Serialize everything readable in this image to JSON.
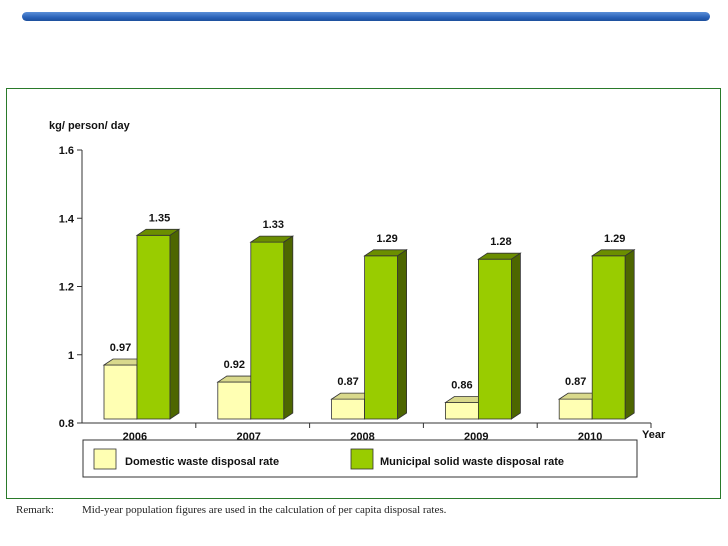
{
  "chart_data": {
    "type": "bar",
    "ylabel": "kg/ person/ day",
    "xlabel": "Year",
    "ylim": [
      0.8,
      1.6
    ],
    "yticks": [
      0.8,
      1,
      1.2,
      1.4,
      1.6
    ],
    "ytick_labels": [
      "0.8",
      "1",
      "1.2",
      "1.4",
      "1.6"
    ],
    "categories": [
      "2006",
      "2007",
      "2008",
      "2009",
      "2010"
    ],
    "series": [
      {
        "name": "Domestic waste disposal rate",
        "values": [
          0.97,
          0.92,
          0.87,
          0.86,
          0.87
        ],
        "labels": [
          "0.97",
          "0.92",
          "0.87",
          "0.86",
          "0.87"
        ]
      },
      {
        "name": "Municipal solid waste disposal rate",
        "values": [
          1.35,
          1.33,
          1.29,
          1.28,
          1.29
        ],
        "labels": [
          "1.35",
          "1.33",
          "1.29",
          "1.28",
          "1.29"
        ]
      }
    ],
    "legend": "bottom",
    "grid": false
  },
  "colors": {
    "domestic_front": "#ffffb3",
    "domestic_top": "#d9d98c",
    "domestic_side": "#c7c77a",
    "municipal_front": "#99cc00",
    "municipal_top": "#6b8e00",
    "municipal_side": "#4d6600",
    "frame": "#2a7a2a",
    "top_bar": "#2a62b8"
  },
  "remark": {
    "label": "Remark:",
    "text": "Mid-year population figures are used in the calculation of per capita disposal rates."
  }
}
